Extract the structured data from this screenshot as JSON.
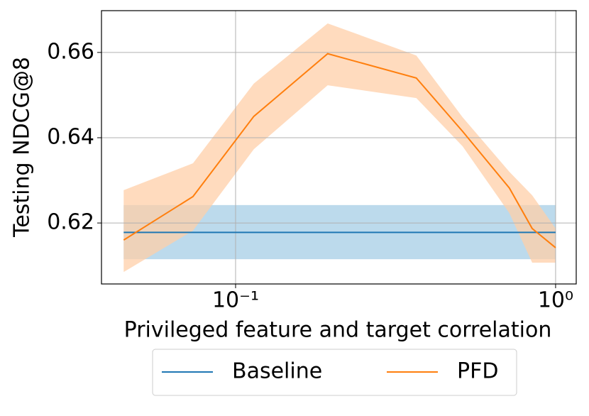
{
  "chart_data": {
    "type": "line",
    "log_x": true,
    "grid": true,
    "legend": "below",
    "xlabel": "Privileged feature and target correlation",
    "ylabel": "Testing NDCG@8",
    "x": [
      0.0447,
      0.0736,
      0.114,
      0.194,
      0.367,
      0.512,
      0.717,
      0.845,
      1.0
    ],
    "xlim": [
      0.0381,
      1.16
    ],
    "xticks": [
      {
        "value": 0.1,
        "label": "10⁻¹"
      },
      {
        "value": 1,
        "label": "10⁰"
      }
    ],
    "ylim": [
      0.6057,
      0.6698
    ],
    "yticks": [
      0.62,
      0.64,
      0.66
    ],
    "series": [
      {
        "name": "Baseline",
        "color": "#1f77b4",
        "band_color": "#a6cde6",
        "values": [
          0.6178,
          0.6178,
          0.6178,
          0.6178,
          0.6178,
          0.6178,
          0.6178,
          0.6178,
          0.6178
        ],
        "lower": [
          0.6115,
          0.6115,
          0.6115,
          0.6115,
          0.6115,
          0.6115,
          0.6115,
          0.6115,
          0.6115
        ],
        "upper": [
          0.6242,
          0.6242,
          0.6242,
          0.6242,
          0.6242,
          0.6242,
          0.6242,
          0.6242,
          0.6242
        ]
      },
      {
        "name": "PFD",
        "color": "#ff7f0e",
        "band_color": "#ffcfa8",
        "values": [
          0.616,
          0.6262,
          0.645,
          0.6597,
          0.654,
          0.6415,
          0.6282,
          0.6187,
          0.6142
        ],
        "lower": [
          0.6085,
          0.6182,
          0.6373,
          0.6523,
          0.6493,
          0.638,
          0.6223,
          0.6107,
          0.6107
        ],
        "upper": [
          0.6277,
          0.634,
          0.6527,
          0.6668,
          0.6593,
          0.6448,
          0.632,
          0.6265,
          0.6187
        ]
      }
    ]
  }
}
